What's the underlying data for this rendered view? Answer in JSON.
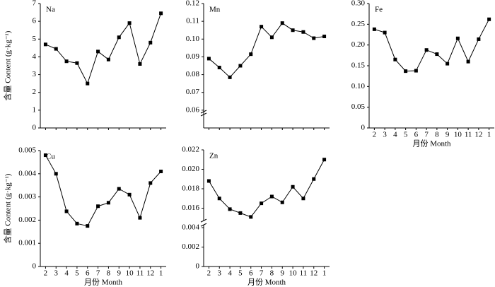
{
  "chart_data": [
    {
      "type": "line",
      "title": "Na",
      "ylabel": "含量 Content (g·kg⁻¹)",
      "categories": [
        null,
        null,
        null,
        null,
        null,
        null,
        null,
        null,
        null,
        null,
        null,
        null
      ],
      "values": [
        4.7,
        4.45,
        3.75,
        3.65,
        2.5,
        4.3,
        3.85,
        5.1,
        5.9,
        3.6,
        4.8,
        6.45
      ],
      "ylim": [
        0,
        7
      ],
      "yticks": [
        0,
        1,
        2,
        3,
        4,
        5,
        6,
        7
      ],
      "color": "#000000"
    },
    {
      "type": "line",
      "title": "Mn",
      "categories": [
        null,
        null,
        null,
        null,
        null,
        null,
        null,
        null,
        null,
        null,
        null,
        null
      ],
      "values": [
        0.089,
        0.084,
        0.0785,
        0.085,
        0.0915,
        0.107,
        0.101,
        0.109,
        0.105,
        0.104,
        0.1005,
        0.1015
      ],
      "ylim": [
        0.05,
        0.12
      ],
      "yticks": [
        0.06,
        0.07,
        0.08,
        0.09,
        {
          "value": 0.1,
          "label": "0.10"
        },
        0.11,
        0.12
      ],
      "color": "#000000"
    },
    {
      "type": "line",
      "title": "Fe",
      "xlabel": "月份 Month",
      "categories": [
        "2",
        "3",
        "4",
        "5",
        "6",
        "7",
        "8",
        "9",
        "10",
        "11",
        "12",
        "1"
      ],
      "values": [
        0.238,
        0.23,
        0.165,
        0.137,
        0.138,
        0.188,
        0.178,
        0.155,
        0.216,
        0.16,
        0.214,
        0.262
      ],
      "ylim": [
        0,
        0.3
      ],
      "yticks": [
        0,
        0.05,
        {
          "value": 0.1,
          "label": "0.10"
        },
        0.15,
        {
          "value": 0.2,
          "label": "0.20"
        },
        0.25,
        {
          "value": 0.3,
          "label": "0.30"
        }
      ],
      "color": "#000000"
    },
    {
      "type": "line",
      "title": "Cu",
      "ylabel": "含量 Content (g·kg⁻¹)",
      "xlabel": "月份 Month",
      "categories": [
        "2",
        "3",
        "4",
        "5",
        "6",
        "7",
        "8",
        "9",
        "10",
        "11",
        "12",
        "1"
      ],
      "values": [
        0.0048,
        0.004,
        0.00238,
        0.00185,
        0.00175,
        0.0026,
        0.00275,
        0.00335,
        0.0031,
        0.0021,
        0.0036,
        0.0041
      ],
      "ylim": [
        0,
        0.005
      ],
      "yticks": [
        0,
        0.001,
        0.002,
        0.003,
        0.004,
        0.005
      ],
      "color": "#000000"
    },
    {
      "type": "line",
      "title": "Zn",
      "xlabel": "月份 Month",
      "categories": [
        "2",
        "3",
        "4",
        "5",
        "6",
        "7",
        "8",
        "9",
        "10",
        "11",
        "12",
        "1"
      ],
      "values": [
        0.0188,
        0.017,
        0.0159,
        0.0155,
        0.0151,
        0.0165,
        0.0172,
        0.0166,
        0.0182,
        0.017,
        0.019,
        0.021
      ],
      "ylim": [
        0,
        0.022
      ],
      "ybreak": [
        0.0045,
        0.0145
      ],
      "yticks": [
        0,
        0.002,
        0.004,
        0.016,
        0.018,
        {
          "value": 0.02,
          "label": "0.020"
        },
        0.022
      ],
      "color": "#000000"
    }
  ]
}
